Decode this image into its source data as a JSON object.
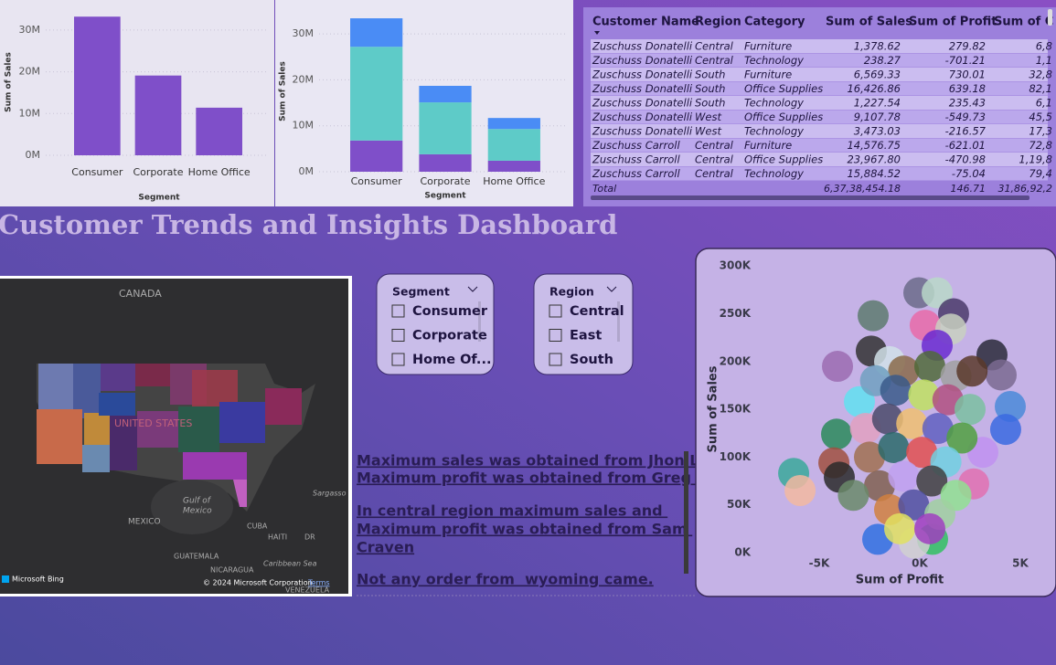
{
  "title": "Customer Trends and Insights Dashboard",
  "chart_data": [
    {
      "type": "bar",
      "x_label": "Segment",
      "y_label": "Sum of Sales",
      "categories": [
        "Consumer",
        "Corporate",
        "Home Office"
      ],
      "values": [
        33200000,
        19100000,
        11400000
      ],
      "color": "#7f4fc9",
      "ylim": [
        0,
        35000000
      ],
      "yticks": [
        {
          "value": 0,
          "label": "0M"
        },
        {
          "value": 10000000,
          "label": "10M"
        },
        {
          "value": 20000000,
          "label": "20M"
        },
        {
          "value": 30000000,
          "label": "30M"
        }
      ],
      "grid": true
    },
    {
      "type": "bar",
      "stacked": true,
      "x_label": "Segment",
      "y_label": "Sum of Sales",
      "categories": [
        "Consumer",
        "Corporate",
        "Home Office"
      ],
      "series": [
        {
          "color": "#7f4fc9",
          "values": [
            6800000,
            3800000,
            2400000
          ]
        },
        {
          "color": "#5ecbc8",
          "values": [
            20400000,
            11300000,
            6900000
          ]
        },
        {
          "color": "#4a8cf5",
          "values": [
            6200000,
            3600000,
            2400000
          ]
        }
      ],
      "ylim": [
        0,
        35000000
      ],
      "yticks": [
        {
          "value": 0,
          "label": "0M"
        },
        {
          "value": 10000000,
          "label": "10M"
        },
        {
          "value": 20000000,
          "label": "20M"
        },
        {
          "value": 30000000,
          "label": "30M"
        }
      ],
      "grid": true
    },
    {
      "type": "scatter",
      "x_label": "Sum of Profit",
      "y_label": "Sum of Sales",
      "x": [
        -2318,
        -6270,
        -5950,
        -4090,
        -2410,
        -45,
        864,
        1680,
        270,
        1545,
        864,
        3590,
        4045,
        4500,
        4270,
        -3000,
        -4136,
        -4270,
        -4000,
        3136,
        2680,
        636,
        -270,
        -2090,
        -1500,
        -800,
        500,
        1800,
        2600,
        -2200,
        -1200,
        200,
        1400,
        2500,
        -2700,
        -1600,
        -400,
        900,
        2100,
        -2500,
        -1300,
        100,
        1300,
        -2000,
        -800,
        600,
        1800,
        -1500,
        -300,
        1000,
        -1000,
        500,
        -3300
      ],
      "y": [
        248000,
        83000,
        65000,
        195000,
        211000,
        272000,
        272000,
        250000,
        238000,
        234000,
        217000,
        207000,
        186000,
        153000,
        129000,
        158000,
        124000,
        94000,
        79000,
        105000,
        72000,
        14000,
        10000,
        14000,
        200000,
        190000,
        195000,
        185000,
        190000,
        180000,
        170000,
        165000,
        160000,
        150000,
        130000,
        140000,
        135000,
        130000,
        120000,
        100000,
        110000,
        105000,
        95000,
        70000,
        80000,
        75000,
        60000,
        45000,
        50000,
        40000,
        25000,
        25000,
        60000
      ],
      "colors": [
        "#5d7a6e",
        "#3aa89a",
        "#f2b8a0",
        "#9b6bb0",
        "#333333",
        "#6b6b8a",
        "#b8d8c8",
        "#4a3a6a",
        "#e86aa8",
        "#c8d0c0",
        "#6a2ad0",
        "#2a2a3a",
        "#7a6a90",
        "#4a8ad8",
        "#3a6ae0",
        "#60e0f0",
        "#2a8a5a",
        "#a05040",
        "#2a2a2a",
        "#c090f0",
        "#e070b0",
        "#30c060",
        "#d0d0d0",
        "#3070e0",
        "#d0e0e8",
        "#8a6a4a",
        "#506a3a",
        "#a0a0a0",
        "#5a3a2a",
        "#70a0c0",
        "#3a5a8a",
        "#c0e060",
        "#b05080",
        "#7ac0a0",
        "#e0a0c0",
        "#4a4a6a",
        "#f0c070",
        "#6060c0",
        "#50a040",
        "#a07050",
        "#2a6a6a",
        "#e05050",
        "#70d0e0",
        "#806050",
        "#c0a0f0",
        "#404040",
        "#90e090",
        "#d08040",
        "#5050a0",
        "#a0d0a0",
        "#e0e060",
        "#a040c0",
        "#6a8a6a"
      ],
      "xlim": [
        -9000,
        6500
      ],
      "ylim": [
        0,
        305000
      ],
      "xticks": [
        {
          "value": -5000,
          "label": "-5K"
        },
        {
          "value": 0,
          "label": "0K"
        },
        {
          "value": 5000,
          "label": "5K"
        }
      ],
      "yticks": [
        {
          "value": 0,
          "label": "0K"
        },
        {
          "value": 50000,
          "label": "50K"
        },
        {
          "value": 100000,
          "label": "100K"
        },
        {
          "value": 150000,
          "label": "150K"
        },
        {
          "value": 200000,
          "label": "200K"
        },
        {
          "value": 250000,
          "label": "250K"
        },
        {
          "value": 300000,
          "label": "300K"
        }
      ],
      "grid": false
    }
  ],
  "table": {
    "columns": [
      "Customer Name",
      "Region",
      "Category",
      "Sum of Sales",
      "Sum of Profit",
      "Sum of C"
    ],
    "rows": [
      [
        "Zuschuss Donatelli",
        "Central",
        "Furniture",
        "1,378.62",
        "279.82",
        "6,8"
      ],
      [
        "Zuschuss Donatelli",
        "Central",
        "Technology",
        "238.27",
        "-701.21",
        "1,1"
      ],
      [
        "Zuschuss Donatelli",
        "South",
        "Furniture",
        "6,569.33",
        "730.01",
        "32,8"
      ],
      [
        "Zuschuss Donatelli",
        "South",
        "Office Supplies",
        "16,426.86",
        "639.18",
        "82,1"
      ],
      [
        "Zuschuss Donatelli",
        "South",
        "Technology",
        "1,227.54",
        "235.43",
        "6,1"
      ],
      [
        "Zuschuss Donatelli",
        "West",
        "Office Supplies",
        "9,107.78",
        "-549.73",
        "45,5"
      ],
      [
        "Zuschuss Donatelli",
        "West",
        "Technology",
        "3,473.03",
        "-216.57",
        "17,3"
      ],
      [
        "Zuschuss Carroll",
        "Central",
        "Furniture",
        "14,576.75",
        "-621.01",
        "72,8"
      ],
      [
        "Zuschuss Carroll",
        "Central",
        "Office Supplies",
        "23,967.80",
        "-470.98",
        "1,19,8"
      ],
      [
        "Zuschuss Carroll",
        "Central",
        "Technology",
        "15,884.52",
        "-75.04",
        "79,4"
      ]
    ],
    "total": [
      "Total",
      "6,37,38,454.18",
      "146.71",
      "31,86,92,2"
    ]
  },
  "slicers": [
    {
      "title": "Segment",
      "items": [
        "Consumer",
        "Corporate",
        "Home Of..."
      ]
    },
    {
      "title": "Region",
      "items": [
        "Central",
        "East",
        "South"
      ]
    }
  ],
  "insights": [
    "Maximum sales was obtained from Jhon Lee",
    "Maximum profit was obtained from Greg Tran",
    "In central region maximum sales and ",
    "Maximum profit was obtained from Sam ",
    "Craven",
    "Not any order from  wyoming came."
  ],
  "map": {
    "labels": [
      "CANADA",
      "UNITED STATES",
      "Gulf of",
      "Mexico",
      "MEXICO",
      "CUBA",
      "HAITI",
      "DR",
      "GUATEMALA",
      "NICARAGUA",
      "Caribbean Sea",
      "Sargasso",
      "VENEZUELA"
    ],
    "attribution": [
      "Microsoft Bing",
      "© 2024 Microsoft Corporation",
      "Terms"
    ]
  }
}
